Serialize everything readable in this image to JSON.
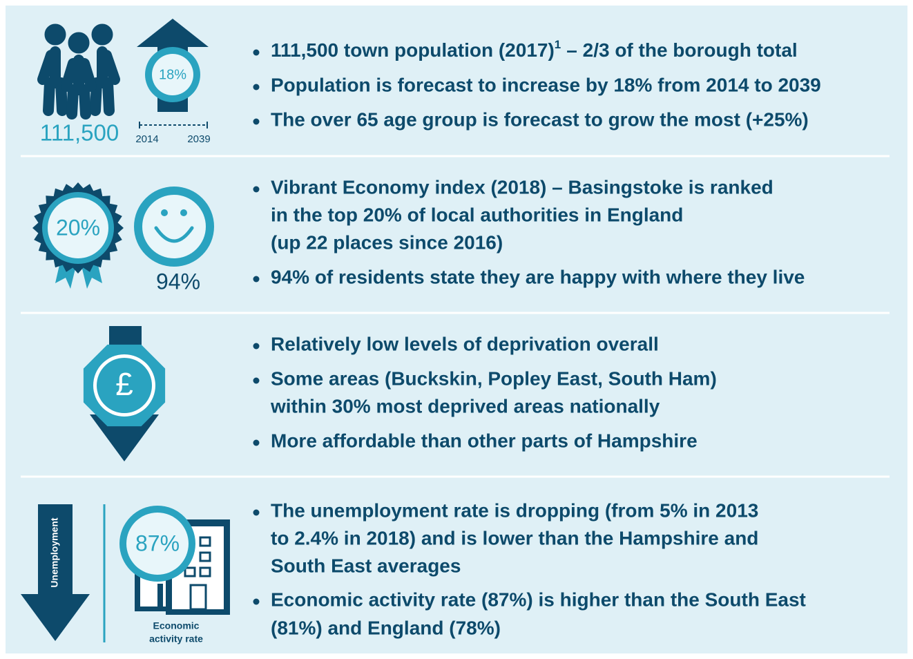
{
  "sections": [
    {
      "figures": {
        "population": "111,500",
        "growth": "18%",
        "start_year": "2014",
        "end_year": "2039"
      },
      "bullets": [
        {
          "text": "111,500 town population (2017)",
          "sup": "1",
          "rest": "– 2/3 of the borough total"
        },
        [
          "Population is forecast to increase by 18% from 2014 to 2039"
        ],
        [
          "The over 65 age group is forecast to grow the most (+25%)"
        ]
      ]
    },
    {
      "figures": {
        "ranking": "20%",
        "happiness": "94%"
      },
      "bullets": [
        [
          "Vibrant Economy index (2018) – Basingstoke is ranked",
          "in the top 20% of local authorities in England",
          "(up 22 places since 2016)"
        ],
        [
          "94% of residents state they are happy with where they live"
        ]
      ]
    },
    {
      "figures": {
        "symbol": "£"
      },
      "bullets": [
        [
          "Relatively low levels of deprivation overall"
        ],
        [
          "Some areas (Buckskin, Popley East, South Ham)",
          "within 30% most deprived areas nationally"
        ],
        [
          "More affordable than other parts of Hampshire"
        ]
      ]
    },
    {
      "figures": {
        "unemployment": "Unemployment",
        "activity": "87%",
        "activity_label": [
          "Economic",
          "activity rate"
        ]
      },
      "bullets": [
        [
          "The unemployment rate is dropping (from 5% in 2013",
          "to 2.4% in 2018) and is lower than the Hampshire and",
          "South East averages"
        ],
        [
          "Economic activity rate (87%) is higher than the South East",
          "(81%) and England (78%)"
        ]
      ]
    }
  ]
}
